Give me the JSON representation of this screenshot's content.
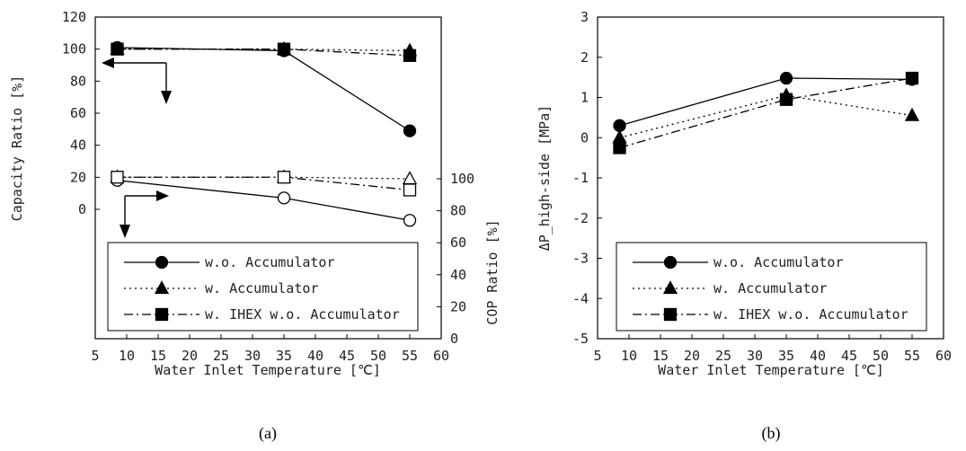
{
  "colors": {
    "ink": "#000000",
    "text": "#222222",
    "background": "#ffffff"
  },
  "chart_data": [
    {
      "type": "line",
      "caption": "(a)",
      "xlabel": "Water Inlet Temperature [℃]",
      "xlim": [
        5,
        60
      ],
      "xticks": [
        5,
        10,
        15,
        20,
        25,
        30,
        35,
        40,
        45,
        50,
        55,
        60
      ],
      "ylabel": "Capacity Ratio [%]",
      "ylim": [
        -100,
        120
      ],
      "yticks": [
        0,
        20,
        40,
        60,
        80,
        100,
        120
      ],
      "y2label": "COP Ratio [%]",
      "y2lim": [
        0,
        160
      ],
      "y2ticks": [
        0,
        20,
        40,
        60,
        80,
        100
      ],
      "grid": false,
      "legend": "bottom",
      "series": [
        {
          "name": "w.o. Accumulator",
          "axis": "left",
          "metric": "capacity",
          "marker": "circle",
          "filled": true,
          "dash": "solid",
          "x": [
            8.5,
            35,
            55
          ],
          "y": [
            101,
            99,
            49
          ]
        },
        {
          "name": "w. Accumulator",
          "axis": "left",
          "metric": "capacity",
          "marker": "triangle",
          "filled": true,
          "dash": "dotted",
          "x": [
            8.5,
            35,
            55
          ],
          "y": [
            100,
            100,
            99
          ]
        },
        {
          "name": "w. IHEX w.o. Accumulator",
          "axis": "left",
          "metric": "capacity",
          "marker": "square",
          "filled": true,
          "dash": "dashdot",
          "x": [
            8.5,
            35,
            55
          ],
          "y": [
            100,
            100,
            96
          ]
        },
        {
          "name": "w.o. Accumulator",
          "axis": "right",
          "metric": "cop",
          "marker": "circle",
          "filled": false,
          "dash": "solid",
          "x": [
            8.5,
            35,
            55
          ],
          "y": [
            99,
            88,
            74
          ]
        },
        {
          "name": "w. Accumulator",
          "axis": "right",
          "metric": "cop",
          "marker": "triangle",
          "filled": false,
          "dash": "dotted",
          "x": [
            8.5,
            35,
            55
          ],
          "y": [
            101,
            101,
            100
          ]
        },
        {
          "name": "w. IHEX w.o. Accumulator",
          "axis": "right",
          "metric": "cop",
          "marker": "square",
          "filled": false,
          "dash": "dashdot",
          "x": [
            8.5,
            35,
            55
          ],
          "y": [
            101,
            101,
            93
          ]
        }
      ],
      "legend_entries": [
        {
          "name": "w.o. Accumulator",
          "marker": "circle",
          "dash": "solid"
        },
        {
          "name": "w. Accumulator",
          "marker": "triangle",
          "dash": "dotted"
        },
        {
          "name": "w. IHEX w.o. Accumulator",
          "marker": "square",
          "dash": "dashdot"
        }
      ]
    },
    {
      "type": "line",
      "caption": "(b)",
      "xlabel": "Water Inlet Temperature [℃]",
      "xlim": [
        5,
        60
      ],
      "xticks": [
        5,
        10,
        15,
        20,
        25,
        30,
        35,
        40,
        45,
        50,
        55,
        60
      ],
      "ylabel": "ΔP_high-side [MPa]",
      "ylim": [
        -5,
        3
      ],
      "yticks": [
        -5,
        -4,
        -3,
        -2,
        -1,
        0,
        1,
        2,
        3
      ],
      "grid": false,
      "legend": "bottom",
      "series": [
        {
          "name": "w.o. Accumulator",
          "marker": "circle",
          "filled": true,
          "dash": "solid",
          "x": [
            8.5,
            35,
            55
          ],
          "y": [
            0.3,
            1.48,
            1.45
          ]
        },
        {
          "name": "w. Accumulator",
          "marker": "triangle",
          "filled": true,
          "dash": "dotted",
          "x": [
            8.5,
            35,
            55
          ],
          "y": [
            0.0,
            1.05,
            0.55
          ]
        },
        {
          "name": "w. IHEX w.o. Accumulator",
          "marker": "square",
          "filled": true,
          "dash": "dashdot",
          "x": [
            8.5,
            35,
            55
          ],
          "y": [
            -0.25,
            0.95,
            1.48
          ]
        }
      ],
      "legend_entries": [
        {
          "name": "w.o. Accumulator",
          "marker": "circle",
          "dash": "solid"
        },
        {
          "name": "w. Accumulator",
          "marker": "triangle",
          "dash": "dotted"
        },
        {
          "name": "w. IHEX w.o. Accumulator",
          "marker": "square",
          "dash": "dashdot"
        }
      ]
    }
  ]
}
